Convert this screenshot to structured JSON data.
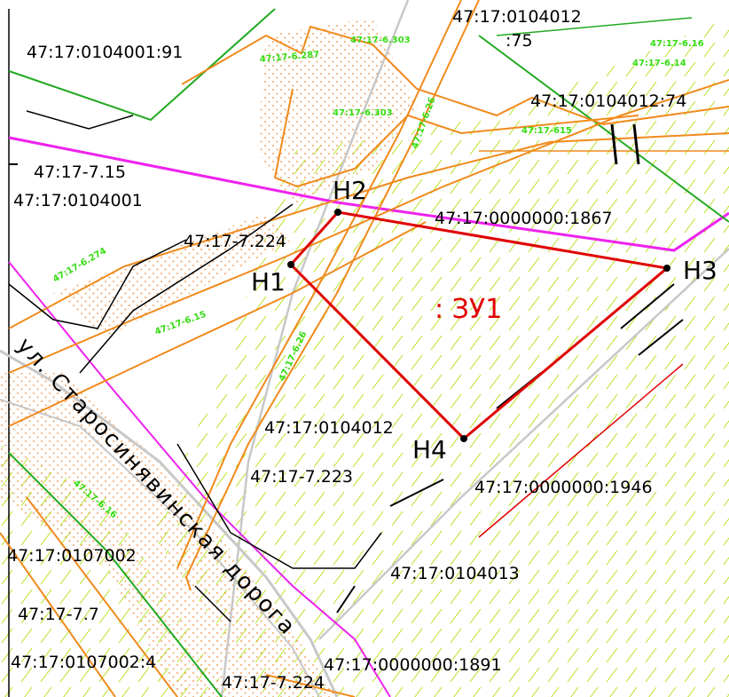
{
  "parcels": [
    "47:17:0104001:91",
    "47:17:0104012",
    ":75",
    "47:17:0104012:74",
    "47:17-7.15",
    "47:17:0104001",
    "47:17:0000000:1867",
    "47:17-7.224",
    "47:17:0104012",
    "47:17-7.223",
    "47:17:0000000:1946",
    "47:17:0107002",
    "47:17:0104013",
    "47:17-7.7",
    "47:17:0107002:4",
    "47:17:0000000:1891",
    "47:17-7.224"
  ],
  "zones": [
    "47:17-6.303",
    "47:17-6.287",
    "47:17-6.16",
    "47:17-6.14",
    "47:17-6.303",
    "47:17-6.26",
    "47:17-615",
    "47:17-6.274",
    "47:17-6.15",
    "47:17-6.26",
    "47:17-6.16"
  ],
  "points": [
    "Н1",
    "Н2",
    "Н3",
    "Н4"
  ],
  "plot": ": ЗУ1",
  "street": "ул. Старосинявинская дорога"
}
